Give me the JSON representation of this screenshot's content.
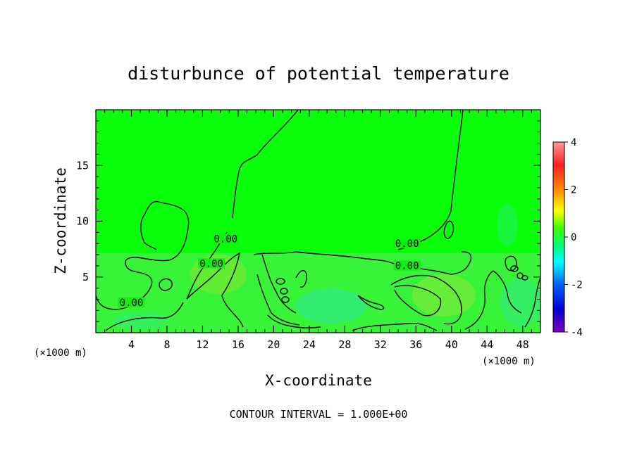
{
  "chart_data": {
    "type": "heatmap",
    "title": "disturbunce of potential temperature",
    "xlabel": "X-coordinate",
    "ylabel": "Z-coordinate",
    "x_unit_left": "(×1000 m)",
    "x_unit_right": "(×1000 m)",
    "footer": "CONTOUR INTERVAL = 1.000E+00",
    "xlim": [
      0,
      50
    ],
    "ylim": [
      0,
      20
    ],
    "x_ticks": [
      4,
      8,
      12,
      16,
      20,
      24,
      28,
      32,
      36,
      40,
      44,
      48
    ],
    "y_ticks": [
      5,
      10,
      15
    ],
    "colorbar": {
      "range": [
        -4,
        4
      ],
      "ticks": [
        4,
        2,
        0,
        -2,
        -4
      ],
      "colors": [
        "#ff9090",
        "#ff0000",
        "#ff8000",
        "#ffff00",
        "#00ff00",
        "#00ffff",
        "#0060ff",
        "#0000c0",
        "#8000c0"
      ]
    },
    "background_color": "#0aff0a",
    "contour_level_label": "0.00",
    "contour_labels": [
      {
        "text": "0.00",
        "x": 4.0,
        "y": 2.6
      },
      {
        "text": "0.00",
        "x": 13.0,
        "y": 6.1
      },
      {
        "text": "0.00",
        "x": 14.6,
        "y": 8.3
      },
      {
        "text": "0.00",
        "x": 35.0,
        "y": 7.9
      },
      {
        "text": "0.00",
        "x": 35.0,
        "y": 5.9
      }
    ]
  }
}
